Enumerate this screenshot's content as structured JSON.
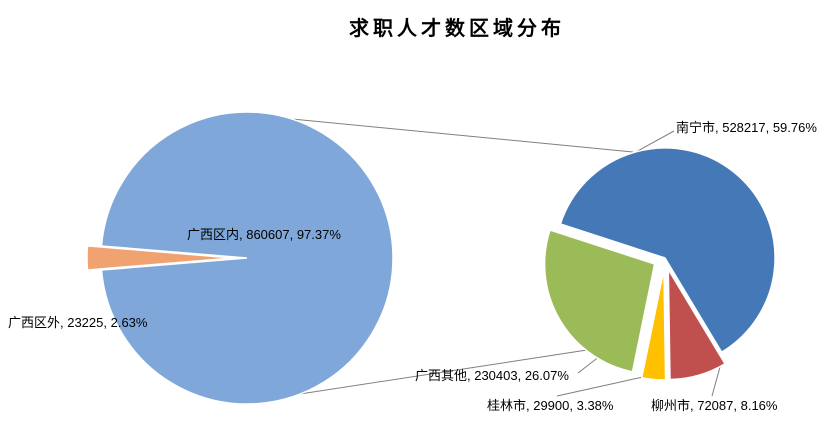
{
  "title": "求职人才数区域分布",
  "chart_data": {
    "type": "pie",
    "subtype": "pie-of-pie",
    "title": "求职人才数区域分布",
    "legend": "none",
    "main_pie": {
      "slices": [
        {
          "label": "广西区内",
          "value": 860607,
          "pct": 97.37,
          "color": "#7FA7D9",
          "exploded": false
        },
        {
          "label": "广西区外",
          "value": 23225,
          "pct": 2.63,
          "color": "#F0A270",
          "exploded": true
        }
      ]
    },
    "secondary_pie": {
      "slices": [
        {
          "label": "南宁市",
          "value": 528217,
          "pct": 59.76,
          "color": "#4478B6",
          "exploded": false
        },
        {
          "label": "柳州市",
          "value": 72087,
          "pct": 8.16,
          "color": "#C0504D",
          "exploded": true
        },
        {
          "label": "桂林市",
          "value": 29900,
          "pct": 3.38,
          "color": "#FFC000",
          "exploded": true
        },
        {
          "label": "广西其他",
          "value": 230403,
          "pct": 26.07,
          "color": "#9BBB59",
          "exploded": true
        }
      ]
    }
  },
  "labels": {
    "main_inner": "广西区内, 860607, 97.37%",
    "main_outer": "广西区外, 23225, 2.63%",
    "nanning": "南宁市, 528217, 59.76%",
    "liuzhou": "柳州市, 72087, 8.16%",
    "guilin": "桂林市, 29900, 3.38%",
    "gx_other": "广西其他, 230403, 26.07%"
  }
}
